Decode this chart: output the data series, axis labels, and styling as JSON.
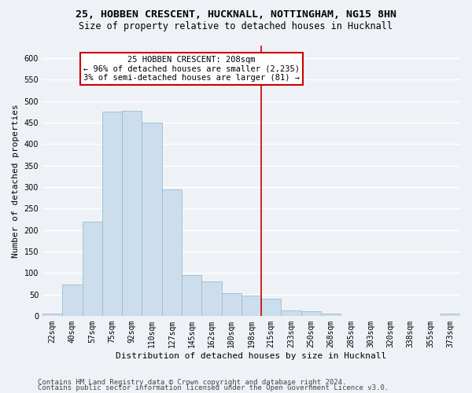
{
  "title1": "25, HOBBEN CRESCENT, HUCKNALL, NOTTINGHAM, NG15 8HN",
  "title2": "Size of property relative to detached houses in Hucknall",
  "xlabel": "Distribution of detached houses by size in Hucknall",
  "ylabel": "Number of detached properties",
  "bar_color": "#ccdded",
  "bar_edge_color": "#9bbccc",
  "categories": [
    "22sqm",
    "40sqm",
    "57sqm",
    "75sqm",
    "92sqm",
    "110sqm",
    "127sqm",
    "145sqm",
    "162sqm",
    "180sqm",
    "198sqm",
    "215sqm",
    "233sqm",
    "250sqm",
    "268sqm",
    "285sqm",
    "303sqm",
    "320sqm",
    "338sqm",
    "355sqm",
    "373sqm"
  ],
  "values": [
    5,
    72,
    220,
    475,
    478,
    450,
    295,
    95,
    80,
    53,
    47,
    40,
    12,
    11,
    5,
    0,
    0,
    0,
    0,
    0,
    5
  ],
  "ylim": [
    0,
    630
  ],
  "yticks": [
    0,
    50,
    100,
    150,
    200,
    250,
    300,
    350,
    400,
    450,
    500,
    550,
    600
  ],
  "property_line_x": 10.5,
  "annotation_line1": "25 HOBBEN CRESCENT: 208sqm",
  "annotation_line2": "← 96% of detached houses are smaller (2,235)",
  "annotation_line3": "3% of semi-detached houses are larger (81) →",
  "annotation_box_color": "#ffffff",
  "annotation_border_color": "#cc0000",
  "vline_color": "#cc0000",
  "footer1": "Contains HM Land Registry data © Crown copyright and database right 2024.",
  "footer2": "Contains public sector information licensed under the Open Government Licence v3.0.",
  "background_color": "#eef2f7",
  "grid_color": "#ffffff",
  "title1_fontsize": 9.5,
  "title2_fontsize": 8.5,
  "ylabel_fontsize": 8,
  "xlabel_fontsize": 8,
  "tick_fontsize": 7,
  "annotation_fontsize": 7.5,
  "footer_fontsize": 6.5
}
